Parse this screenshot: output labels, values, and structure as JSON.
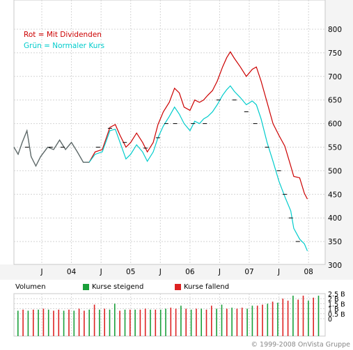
{
  "chart_data": [
    {
      "type": "line",
      "legend": [
        {
          "label": "Rot = Mit Dividenden",
          "color": "#cc0000"
        },
        {
          "label": "Grün = Normaler Kurs",
          "color": "#00cccc"
        }
      ],
      "x_ticks": [
        "J",
        "04",
        "J",
        "05",
        "J",
        "06",
        "J",
        "07",
        "J",
        "08"
      ],
      "x_tick_t": [
        0.5,
        1,
        1.5,
        2,
        2.5,
        3,
        3.5,
        4,
        4.5,
        5
      ],
      "y_ticks": [
        "300",
        "350",
        "400",
        "450",
        "500",
        "550",
        "600",
        "650",
        "700",
        "750",
        "800"
      ],
      "ylim": [
        300,
        800
      ],
      "xlim": [
        0.03,
        5.28
      ],
      "grid": true,
      "series": [
        {
          "name": "Mit Dividenden",
          "color": "#cc0000",
          "points": [
            [
              0.03,
              550
            ],
            [
              0.1,
              535
            ],
            [
              0.17,
              560
            ],
            [
              0.25,
              585
            ],
            [
              0.32,
              530
            ],
            [
              0.4,
              510
            ],
            [
              0.48,
              530
            ],
            [
              0.6,
              550
            ],
            [
              0.7,
              545
            ],
            [
              0.8,
              565
            ],
            [
              0.9,
              545
            ],
            [
              1.0,
              560
            ],
            [
              1.1,
              540
            ],
            [
              1.2,
              518
            ],
            [
              1.3,
              518
            ],
            [
              1.4,
              540
            ],
            [
              1.52,
              545
            ],
            [
              1.65,
              592
            ],
            [
              1.74,
              598
            ],
            [
              1.82,
              575
            ],
            [
              1.92,
              550
            ],
            [
              2.0,
              560
            ],
            [
              2.1,
              580
            ],
            [
              2.2,
              560
            ],
            [
              2.28,
              540
            ],
            [
              2.38,
              560
            ],
            [
              2.46,
              598
            ],
            [
              2.55,
              625
            ],
            [
              2.65,
              645
            ],
            [
              2.74,
              675
            ],
            [
              2.82,
              665
            ],
            [
              2.9,
              635
            ],
            [
              3.0,
              628
            ],
            [
              3.08,
              650
            ],
            [
              3.16,
              645
            ],
            [
              3.23,
              650
            ],
            [
              3.3,
              660
            ],
            [
              3.38,
              670
            ],
            [
              3.46,
              690
            ],
            [
              3.55,
              720
            ],
            [
              3.62,
              740
            ],
            [
              3.68,
              752
            ],
            [
              3.75,
              738
            ],
            [
              3.85,
              720
            ],
            [
              3.95,
              700
            ],
            [
              4.05,
              715
            ],
            [
              4.12,
              720
            ],
            [
              4.2,
              690
            ],
            [
              4.3,
              645
            ],
            [
              4.4,
              600
            ],
            [
              4.5,
              575
            ],
            [
              4.6,
              552
            ],
            [
              4.7,
              510
            ],
            [
              4.75,
              488
            ],
            [
              4.85,
              485
            ],
            [
              4.93,
              452
            ],
            [
              4.98,
              440
            ]
          ]
        },
        {
          "name": "Normaler Kurs",
          "color": "#00cccc",
          "points": [
            [
              0.03,
              550
            ],
            [
              0.1,
              535
            ],
            [
              0.17,
              560
            ],
            [
              0.25,
              585
            ],
            [
              0.32,
              530
            ],
            [
              0.4,
              510
            ],
            [
              0.48,
              530
            ],
            [
              0.6,
              550
            ],
            [
              0.7,
              545
            ],
            [
              0.8,
              565
            ],
            [
              0.9,
              545
            ],
            [
              1.0,
              560
            ],
            [
              1.1,
              540
            ],
            [
              1.2,
              518
            ],
            [
              1.3,
              518
            ],
            [
              1.4,
              535
            ],
            [
              1.52,
              540
            ],
            [
              1.65,
              585
            ],
            [
              1.74,
              588
            ],
            [
              1.82,
              560
            ],
            [
              1.92,
              525
            ],
            [
              2.0,
              535
            ],
            [
              2.1,
              555
            ],
            [
              2.2,
              540
            ],
            [
              2.28,
              520
            ],
            [
              2.38,
              540
            ],
            [
              2.46,
              570
            ],
            [
              2.55,
              595
            ],
            [
              2.65,
              615
            ],
            [
              2.74,
              635
            ],
            [
              2.82,
              620
            ],
            [
              2.9,
              600
            ],
            [
              3.0,
              585
            ],
            [
              3.08,
              605
            ],
            [
              3.16,
              600
            ],
            [
              3.23,
              610
            ],
            [
              3.3,
              615
            ],
            [
              3.38,
              625
            ],
            [
              3.46,
              640
            ],
            [
              3.55,
              660
            ],
            [
              3.62,
              672
            ],
            [
              3.68,
              680
            ],
            [
              3.75,
              668
            ],
            [
              3.85,
              655
            ],
            [
              3.95,
              640
            ],
            [
              4.05,
              648
            ],
            [
              4.12,
              640
            ],
            [
              4.2,
              610
            ],
            [
              4.3,
              560
            ],
            [
              4.4,
              520
            ],
            [
              4.5,
              478
            ],
            [
              4.6,
              445
            ],
            [
              4.7,
              415
            ],
            [
              4.75,
              378
            ],
            [
              4.85,
              355
            ],
            [
              4.93,
              345
            ],
            [
              4.98,
              330
            ]
          ]
        }
      ],
      "ticks_black": [
        [
          0.25,
          550
        ],
        [
          0.65,
          550
        ],
        [
          0.85,
          550
        ],
        [
          1.45,
          550
        ],
        [
          1.65,
          590
        ],
        [
          1.9,
          560
        ],
        [
          2.25,
          548
        ],
        [
          2.46,
          570
        ],
        [
          2.6,
          600
        ],
        [
          2.75,
          600
        ],
        [
          3.05,
          600
        ],
        [
          3.25,
          600
        ],
        [
          3.48,
          650
        ],
        [
          3.75,
          650
        ],
        [
          3.95,
          625
        ],
        [
          4.1,
          600
        ],
        [
          4.3,
          550
        ],
        [
          4.5,
          500
        ],
        [
          4.6,
          450
        ],
        [
          4.7,
          400
        ],
        [
          4.82,
          350
        ]
      ]
    },
    {
      "type": "bar",
      "label": "Volumen",
      "legend": [
        {
          "label": "Kurse steigend",
          "color": "#1a9f3a"
        },
        {
          "label": "Kurse fallend",
          "color": "#dd2222"
        }
      ],
      "y_ticks": [
        "0",
        "0.5 B",
        "1 B",
        "1.5 B",
        "2 B",
        "2.5 B"
      ],
      "ylim": [
        0,
        2.5
      ],
      "values": [
        0.8,
        0.9,
        0.8,
        0.9,
        0.9,
        1.0,
        0.9,
        0.8,
        0.9,
        0.8,
        0.9,
        0.8,
        1.0,
        0.8,
        0.9,
        1.4,
        0.9,
        1.0,
        0.9,
        1.5,
        0.8,
        0.9,
        0.9,
        0.9,
        0.9,
        1.0,
        0.9,
        0.9,
        0.9,
        1.0,
        1.1,
        1.0,
        1.3,
        1.0,
        0.9,
        1.0,
        1.0,
        0.9,
        1.3,
        1.0,
        1.4,
        1.0,
        1.1,
        1.0,
        1.1,
        1.0,
        1.3,
        1.3,
        1.4,
        1.5,
        1.7,
        1.6,
        2.0,
        1.8,
        2.3,
        1.9,
        2.3,
        1.8,
        2.1,
        2.3
      ],
      "directions": [
        "up",
        "down",
        "up",
        "down",
        "up",
        "down",
        "up",
        "down",
        "down",
        "up",
        "down",
        "up",
        "down",
        "down",
        "up",
        "down",
        "up",
        "down",
        "up",
        "up",
        "down",
        "up",
        "down",
        "up",
        "down",
        "down",
        "up",
        "down",
        "up",
        "up",
        "down",
        "down",
        "up",
        "down",
        "up",
        "down",
        "up",
        "down",
        "down",
        "up",
        "up",
        "down",
        "up",
        "down",
        "down",
        "up",
        "up",
        "down",
        "down",
        "up",
        "down",
        "up",
        "down",
        "down",
        "up",
        "down",
        "down",
        "up",
        "down",
        "up"
      ]
    }
  ],
  "copyright": "© 1999-2008 OnVista Gruppe"
}
